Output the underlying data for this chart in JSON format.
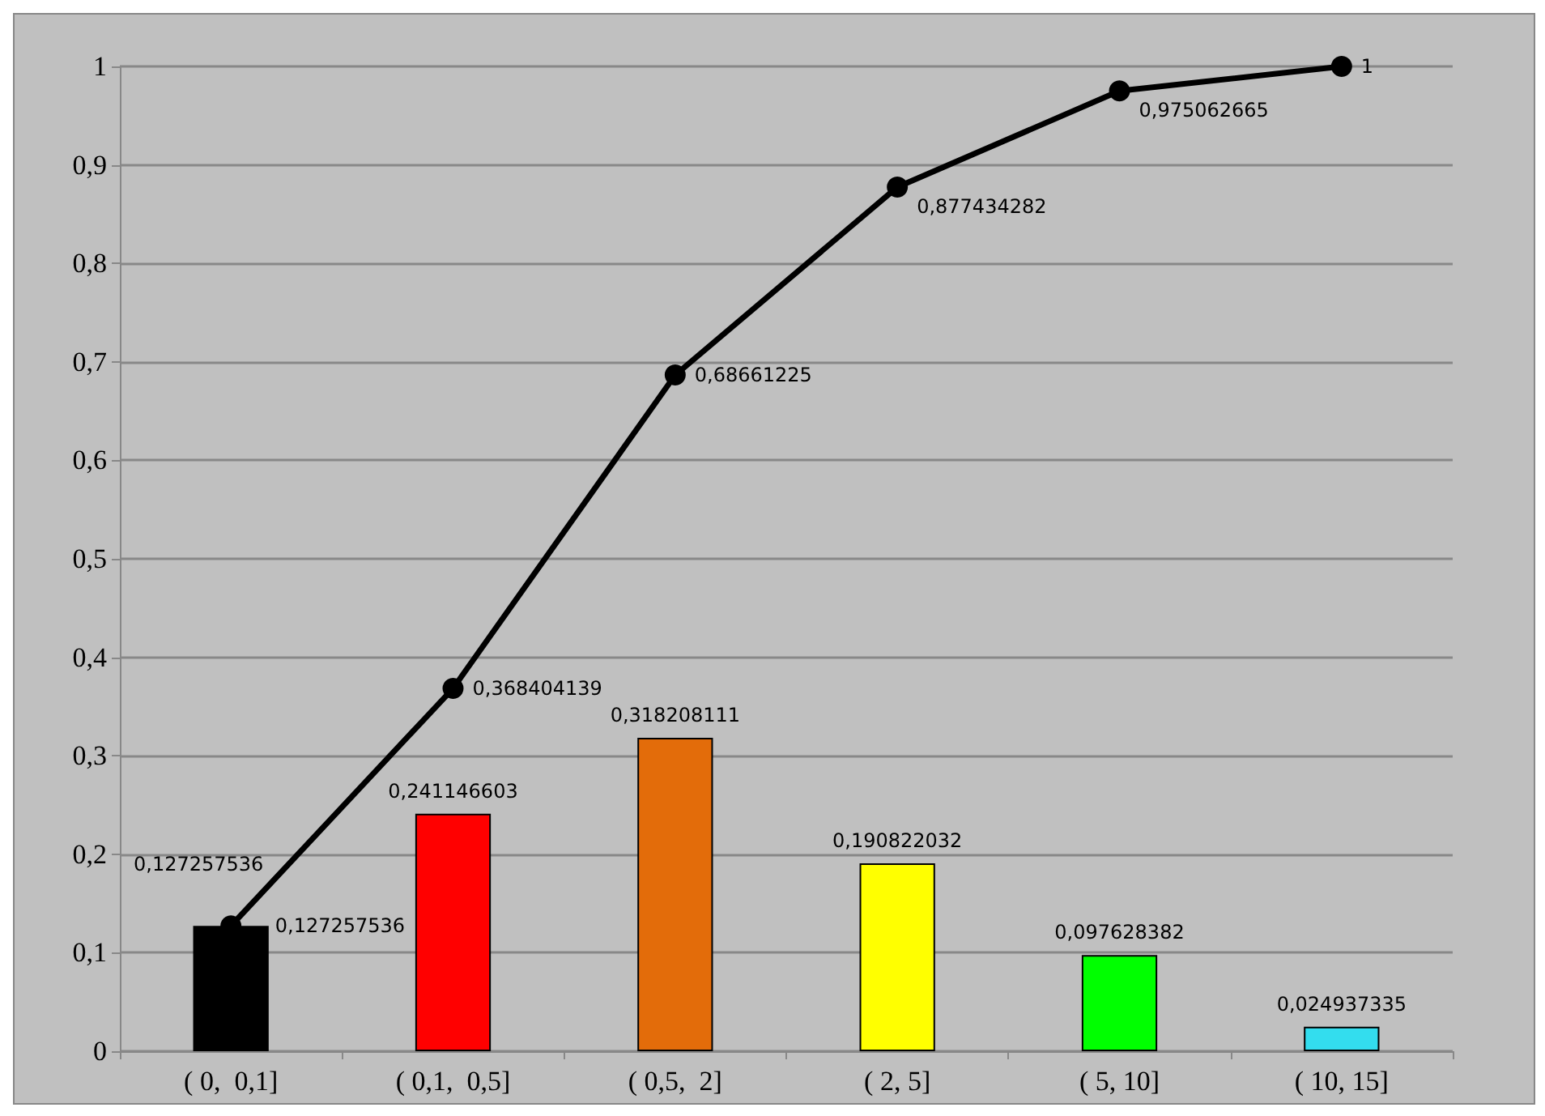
{
  "chart_data": {
    "type": "bar",
    "categories": [
      "( 0,  0,1]",
      "( 0,1,  0,5]",
      "( 0,5,  2]",
      "( 2, 5]",
      "( 5, 10]",
      "( 10, 15]"
    ],
    "series": [
      {
        "colors": [
          "#000000",
          "#ff0000",
          "#e36c0a",
          "#ffff00",
          "#00ff00",
          "#33ddee"
        ],
        "values": [
          0.127257536,
          0.241146603,
          0.318208111,
          0.190822032,
          0.097628382,
          0.024937335
        ],
        "value_labels": [
          "0,127257536",
          "0,241146603",
          "0,318208111",
          "0,190822032",
          "0,097628382",
          "0,024937335"
        ]
      },
      {
        "type": "line",
        "color": "#000000",
        "values": [
          0.127257536,
          0.368404139,
          0.68661225,
          0.877434282,
          0.975062665,
          1
        ],
        "value_labels": [
          "0,127257536",
          "0,368404139",
          "0,68661225",
          "0,877434282",
          "0,975062665",
          "1"
        ]
      }
    ],
    "ylim": [
      0,
      1
    ],
    "yticks": [
      0,
      {
        "value": 0.1,
        "label": "0,1"
      },
      {
        "value": 0.2,
        "label": "0,2"
      },
      {
        "value": 0.3,
        "label": "0,3"
      },
      {
        "value": 0.4,
        "label": "0,4"
      },
      {
        "value": 0.5,
        "label": "0,5"
      },
      {
        "value": 0.6,
        "label": "0,6"
      },
      {
        "value": 0.7,
        "label": "0,7"
      },
      {
        "value": 0.8,
        "label": "0,8"
      },
      {
        "value": 0.9,
        "label": "0,9"
      },
      1
    ],
    "grid": "y",
    "marker": "circle",
    "line_style": "solid"
  }
}
